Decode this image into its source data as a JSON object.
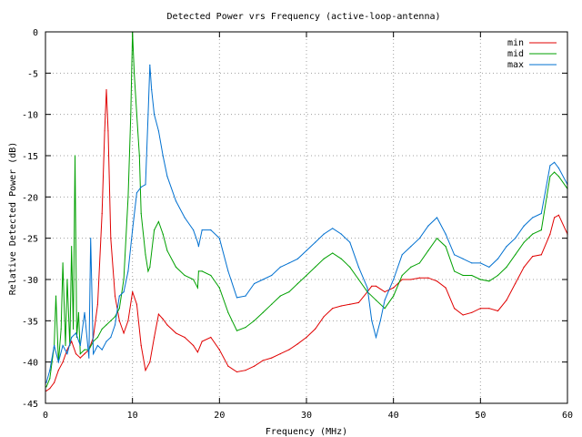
{
  "chart_data": {
    "type": "line",
    "title": "Detected Power vrs Frequency (active-loop-antenna)",
    "xlabel": "Frequency (MHz)",
    "ylabel": "Relative Detected Power (dB)",
    "xlim": [
      0,
      60
    ],
    "ylim": [
      -45,
      0
    ],
    "x_ticks": [
      0,
      10,
      20,
      30,
      40,
      50,
      60
    ],
    "y_ticks": [
      0,
      -5,
      -10,
      -15,
      -20,
      -25,
      -30,
      -35,
      -40,
      -45
    ],
    "grid": true,
    "legend_position": "top-right",
    "series": [
      {
        "name": "min",
        "color": "#e00000",
        "x": [
          0.1,
          0.5,
          1.0,
          1.5,
          2.0,
          2.5,
          3.0,
          3.5,
          4.0,
          4.5,
          5.0,
          5.5,
          6.0,
          6.5,
          6.8,
          7.0,
          7.2,
          7.5,
          8.0,
          8.5,
          9.0,
          9.5,
          10.0,
          10.5,
          11.0,
          11.5,
          12.0,
          12.5,
          13.0,
          13.5,
          14.0,
          15.0,
          16.0,
          17.0,
          17.5,
          18.0,
          19.0,
          20.0,
          21.0,
          22.0,
          23.0,
          24.0,
          25.0,
          26.0,
          27.0,
          28.0,
          29.0,
          30.0,
          31.0,
          32.0,
          33.0,
          34.0,
          35.0,
          36.0,
          37.0,
          37.5,
          38.0,
          39.0,
          40.0,
          41.0,
          42.0,
          43.0,
          44.0,
          45.0,
          46.0,
          47.0,
          48.0,
          49.0,
          50.0,
          51.0,
          52.0,
          53.0,
          54.0,
          55.0,
          56.0,
          57.0,
          58.0,
          58.5,
          59.0,
          60.0
        ],
        "y": [
          -43.5,
          -43.2,
          -42.5,
          -41.0,
          -40.0,
          -38.5,
          -37.5,
          -39.0,
          -39.5,
          -39.0,
          -38.5,
          -37.0,
          -33.0,
          -22.0,
          -12.0,
          -7.0,
          -12.0,
          -25.0,
          -32.0,
          -35.0,
          -36.5,
          -35.0,
          -31.5,
          -33.0,
          -38.0,
          -41.0,
          -40.0,
          -37.0,
          -34.2,
          -34.8,
          -35.5,
          -36.5,
          -37.0,
          -38.0,
          -38.8,
          -37.5,
          -37.0,
          -38.5,
          -40.5,
          -41.2,
          -41.0,
          -40.5,
          -39.8,
          -39.5,
          -39.0,
          -38.5,
          -37.8,
          -37.0,
          -36.0,
          -34.5,
          -33.5,
          -33.2,
          -33.0,
          -32.8,
          -31.5,
          -30.8,
          -30.8,
          -31.5,
          -31.0,
          -30.0,
          -30.0,
          -29.8,
          -29.8,
          -30.2,
          -31.0,
          -33.5,
          -34.3,
          -34.0,
          -33.5,
          -33.5,
          -33.8,
          -32.5,
          -30.5,
          -28.5,
          -27.2,
          -27.0,
          -24.5,
          -22.5,
          -22.2,
          -24.5
        ]
      },
      {
        "name": "mid",
        "color": "#00a000",
        "x": [
          0.1,
          0.5,
          1.0,
          1.2,
          1.5,
          1.8,
          2.0,
          2.3,
          2.5,
          2.8,
          3.0,
          3.2,
          3.4,
          3.6,
          3.8,
          4.0,
          4.5,
          5.0,
          5.5,
          6.0,
          6.5,
          7.0,
          7.5,
          8.0,
          8.5,
          9.0,
          9.5,
          9.8,
          10.0,
          10.2,
          10.5,
          10.8,
          11.0,
          11.5,
          11.8,
          12.0,
          12.5,
          13.0,
          13.5,
          14.0,
          15.0,
          16.0,
          17.0,
          17.5,
          17.6,
          18.0,
          19.0,
          20.0,
          21.0,
          22.0,
          23.0,
          24.0,
          25.0,
          26.0,
          27.0,
          28.0,
          29.0,
          30.0,
          31.0,
          32.0,
          33.0,
          34.0,
          35.0,
          36.0,
          37.0,
          38.0,
          39.0,
          40.0,
          41.0,
          42.0,
          43.0,
          44.0,
          45.0,
          46.0,
          47.0,
          48.0,
          49.0,
          50.0,
          51.0,
          52.0,
          53.0,
          54.0,
          55.0,
          56.0,
          57.0,
          58.0,
          58.5,
          59.0,
          60.0
        ],
        "y": [
          -43.0,
          -42.0,
          -38.0,
          -32.0,
          -40.0,
          -36.0,
          -28.0,
          -38.0,
          -30.0,
          -38.0,
          -26.0,
          -36.0,
          -15.0,
          -37.0,
          -34.0,
          -39.0,
          -38.5,
          -38.5,
          -37.5,
          -37.0,
          -36.0,
          -35.5,
          -35.0,
          -34.5,
          -33.5,
          -30.0,
          -20.0,
          -10.0,
          0.0,
          -5.0,
          -10.0,
          -15.0,
          -22.0,
          -27.0,
          -29.0,
          -28.5,
          -24.0,
          -23.0,
          -24.5,
          -26.5,
          -28.5,
          -29.5,
          -30.0,
          -31.0,
          -29.0,
          -29.0,
          -29.5,
          -31.0,
          -34.0,
          -36.2,
          -35.8,
          -35.0,
          -34.0,
          -33.0,
          -32.0,
          -31.5,
          -30.5,
          -29.5,
          -28.5,
          -27.5,
          -26.8,
          -27.5,
          -28.5,
          -30.0,
          -31.5,
          -32.5,
          -33.5,
          -32.0,
          -29.5,
          -28.5,
          -28.0,
          -26.5,
          -25.0,
          -26.0,
          -29.0,
          -29.5,
          -29.5,
          -30.0,
          -30.2,
          -29.5,
          -28.5,
          -27.0,
          -25.5,
          -24.5,
          -24.0,
          -17.5,
          -17.0,
          -17.5,
          -19.0
        ]
      },
      {
        "name": "max",
        "color": "#0070d0",
        "x": [
          0.1,
          0.5,
          1.0,
          1.5,
          2.0,
          2.5,
          3.0,
          3.5,
          4.0,
          4.5,
          5.0,
          5.2,
          5.5,
          6.0,
          6.5,
          7.0,
          7.5,
          8.0,
          8.5,
          9.0,
          9.5,
          10.0,
          10.5,
          11.0,
          11.5,
          11.8,
          12.0,
          12.2,
          12.5,
          13.0,
          13.5,
          14.0,
          15.0,
          16.0,
          17.0,
          17.5,
          17.6,
          18.0,
          19.0,
          20.0,
          21.0,
          22.0,
          23.0,
          24.0,
          25.0,
          26.0,
          27.0,
          28.0,
          29.0,
          30.0,
          31.0,
          32.0,
          33.0,
          34.0,
          35.0,
          36.0,
          37.0,
          37.5,
          38.0,
          38.5,
          39.0,
          40.0,
          41.0,
          42.0,
          43.0,
          44.0,
          45.0,
          46.0,
          47.0,
          48.0,
          49.0,
          50.0,
          51.0,
          52.0,
          53.0,
          54.0,
          55.0,
          56.0,
          57.0,
          58.0,
          58.5,
          59.0,
          60.0
        ],
        "y": [
          -42.5,
          -41.0,
          -38.0,
          -40.0,
          -38.0,
          -39.0,
          -37.0,
          -36.5,
          -38.0,
          -34.0,
          -39.5,
          -25.0,
          -39.0,
          -38.0,
          -38.5,
          -37.5,
          -37.0,
          -35.5,
          -32.0,
          -31.5,
          -29.0,
          -24.0,
          -19.5,
          -18.8,
          -18.5,
          -10.0,
          -4.0,
          -7.0,
          -10.0,
          -12.0,
          -15.0,
          -17.5,
          -20.5,
          -22.5,
          -24.0,
          -25.5,
          -26.0,
          -24.0,
          -24.0,
          -25.0,
          -29.0,
          -32.2,
          -32.0,
          -30.5,
          -30.0,
          -29.5,
          -28.5,
          -28.0,
          -27.5,
          -26.5,
          -25.5,
          -24.5,
          -23.8,
          -24.5,
          -25.5,
          -28.5,
          -31.0,
          -35.0,
          -37.0,
          -35.0,
          -32.5,
          -30.0,
          -27.0,
          -26.0,
          -25.0,
          -23.5,
          -22.5,
          -24.5,
          -27.0,
          -27.5,
          -28.0,
          -28.0,
          -28.5,
          -27.5,
          -26.0,
          -25.0,
          -23.5,
          -22.5,
          -22.0,
          -16.2,
          -15.8,
          -16.5,
          -18.5
        ]
      }
    ]
  }
}
